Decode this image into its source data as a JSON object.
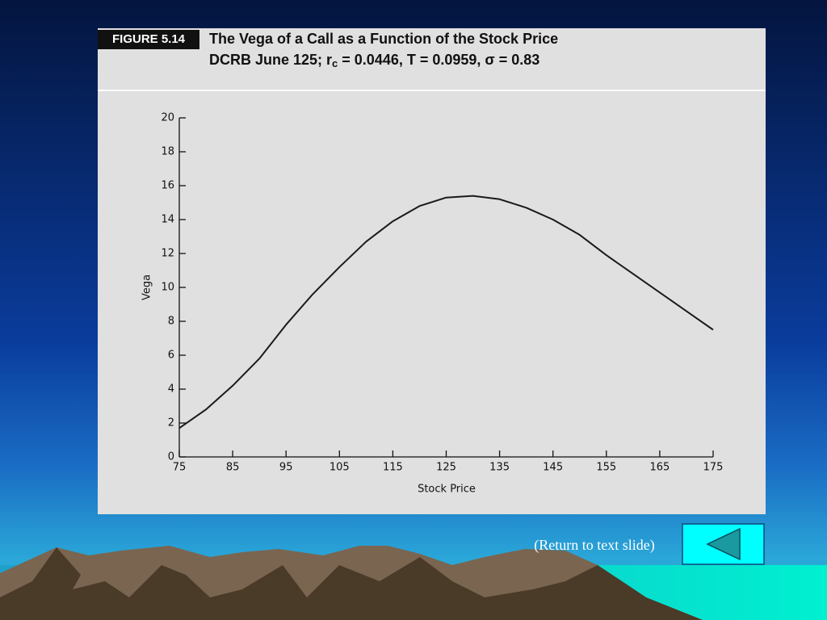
{
  "chart_data": {
    "type": "line",
    "figure_label": "FIGURE 5.14",
    "title": "The Vega of a Call as a Function of the Stock Price",
    "subtitle": [
      "DCRB June 125; r",
      "c",
      " = 0.0446, T = 0.0959, σ = 0.83"
    ],
    "x_label": "Stock Price",
    "y_label": "Vega",
    "x": [
      75,
      80,
      85,
      90,
      95,
      100,
      105,
      110,
      115,
      120,
      125,
      130,
      135,
      140,
      145,
      150,
      155,
      160,
      165,
      170,
      175
    ],
    "values": [
      1.7,
      2.8,
      4.2,
      5.8,
      7.8,
      9.6,
      11.2,
      12.7,
      13.9,
      14.8,
      15.3,
      15.4,
      15.2,
      14.7,
      14.0,
      13.1,
      11.9,
      10.8,
      9.7,
      8.6,
      7.5
    ],
    "color": "#1a1a1a",
    "xlim": [
      75,
      175
    ],
    "xticks": [
      75,
      85,
      95,
      105,
      115,
      125,
      135,
      145,
      155,
      165,
      175
    ],
    "ylim": [
      0,
      20
    ],
    "yticks": [
      0,
      2,
      4,
      6,
      8,
      10,
      12,
      14,
      16,
      18,
      20
    ],
    "grid": false
  },
  "nav_label": "(Return to text slide)"
}
